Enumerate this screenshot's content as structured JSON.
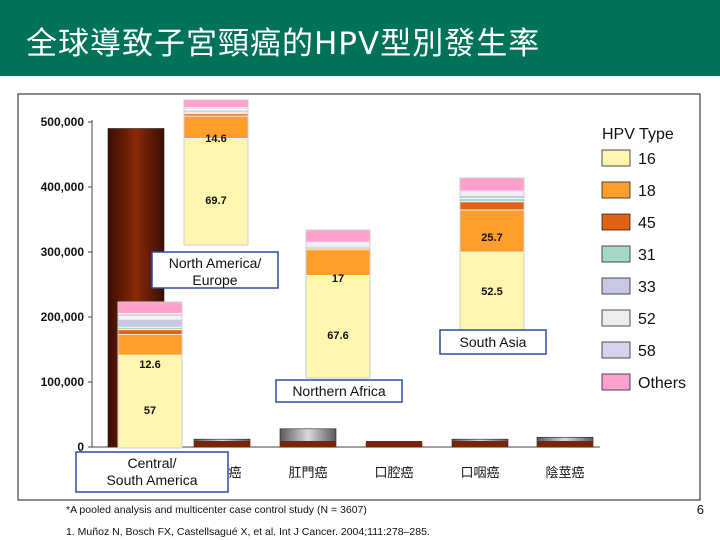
{
  "slide": {
    "title": "全球導致子宮頸癌的HPV型別發生率",
    "number": "6",
    "footnote": "*A pooled analysis and multicenter case control study (N = 3607)",
    "reference": "1. Muñoz N, Bosch FX, Castellsagué X, et al. Int J Cancer. 2004;111:278–285."
  },
  "chart_data": {
    "type": "bar",
    "ylim": [
      0,
      500000
    ],
    "yticks": [
      0,
      100000,
      200000,
      300000,
      400000,
      500000
    ],
    "ytick_labels": [
      "0",
      "100,000",
      "200,000",
      "300,000",
      "400,000",
      "500,000"
    ],
    "grid": false,
    "legend_position": "right",
    "categories": [
      "",
      "陰道癌",
      "肛門癌",
      "口腔癌",
      "口咽癌",
      "陰莖癌"
    ],
    "bars": [
      {
        "label": "",
        "value": 490000
      },
      {
        "label": "陰道癌",
        "value": 12000
      },
      {
        "label": "肛門癌",
        "value": 28000
      },
      {
        "label": "口腔癌",
        "value": 6000
      },
      {
        "label": "口咽癌",
        "value": 12000
      },
      {
        "label": "陰莖癌",
        "value": 15000
      }
    ],
    "legend": {
      "title": "HPV Type",
      "items": [
        {
          "name": "16",
          "color": "#fff6b0"
        },
        {
          "name": "18",
          "color": "#ff9e2b"
        },
        {
          "name": "45",
          "color": "#e06215"
        },
        {
          "name": "31",
          "color": "#a8d8c8"
        },
        {
          "name": "33",
          "color": "#c8c8e6"
        },
        {
          "name": "52",
          "color": "#eeeeee"
        },
        {
          "name": "58",
          "color": "#d8d2ec"
        },
        {
          "name": "Others",
          "color": "#ff9fce"
        }
      ]
    },
    "regional_stacks": [
      {
        "region": "Central/South America",
        "labels": [
          "57",
          "12.6"
        ],
        "segments": [
          57,
          12.6,
          3,
          1.5,
          5,
          1.5,
          2,
          7
        ]
      },
      {
        "region": "North America/ Europe",
        "labels": [
          "69.7",
          "14.6"
        ],
        "segments": [
          69.7,
          14.6,
          1.5,
          1,
          1.5,
          0.5,
          1,
          5
        ]
      },
      {
        "region": "Northern Africa",
        "labels": [
          "67.6",
          "17"
        ],
        "segments": [
          67.6,
          17,
          1,
          1,
          1,
          1,
          1,
          8
        ]
      },
      {
        "region": "South Asia",
        "labels": [
          "52.5",
          "25.7"
        ],
        "segments": [
          52.5,
          25.7,
          5,
          2,
          2,
          1.5,
          1,
          8
        ]
      }
    ]
  }
}
